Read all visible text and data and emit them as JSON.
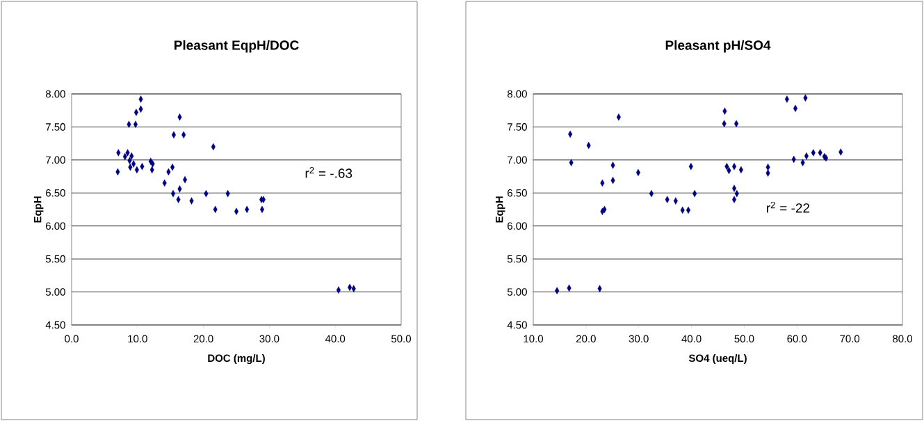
{
  "chart_data": [
    {
      "type": "scatter",
      "title": "Pleasant EqpH/DOC",
      "xlabel": "DOC (mg/L)",
      "ylabel": "EqpH",
      "color": "#000080",
      "marker": "diamond",
      "grid": "y",
      "legend": false,
      "x": [
        7.0,
        7.1,
        8.1,
        8.5,
        9.1,
        8.8,
        8.9,
        9.4,
        9.9,
        8.7,
        9.7,
        9.8,
        10.5,
        10.5,
        10.7,
        12.0,
        12.3,
        12.2,
        14.1,
        14.7,
        15.3,
        15.5,
        16.4,
        17.0,
        17.2,
        15.4,
        16.4,
        16.2,
        18.2,
        20.4,
        21.5,
        21.8,
        23.7,
        25.0,
        26.6,
        28.8,
        29.1,
        28.9,
        40.5,
        42.2,
        42.8
      ],
      "values": [
        6.82,
        7.11,
        7.05,
        7.11,
        7.06,
        6.99,
        6.89,
        6.94,
        6.85,
        7.54,
        7.54,
        7.72,
        7.77,
        7.92,
        6.9,
        6.98,
        6.94,
        6.85,
        6.65,
        6.82,
        6.89,
        7.38,
        7.65,
        7.38,
        6.7,
        6.49,
        6.56,
        6.4,
        6.38,
        6.49,
        7.2,
        6.25,
        6.49,
        6.22,
        6.25,
        6.4,
        6.4,
        6.25,
        5.03,
        5.07,
        5.05
      ],
      "xlim": [
        0,
        50
      ],
      "xticks": [
        {
          "value": 0,
          "label": "0.0"
        },
        {
          "value": 10,
          "label": "10.0"
        },
        {
          "value": 20,
          "label": "20.0"
        },
        {
          "value": 30,
          "label": "30.0"
        },
        {
          "value": 40,
          "label": "40.0"
        },
        {
          "value": 50,
          "label": "50.0"
        }
      ],
      "ylim": [
        4.5,
        8
      ],
      "yticks": [
        {
          "value": 4.5,
          "label": "4.50"
        },
        {
          "value": 5,
          "label": "5.00"
        },
        {
          "value": 5.5,
          "label": "5.50"
        },
        {
          "value": 6,
          "label": "6.00"
        },
        {
          "value": 6.5,
          "label": "6.50"
        },
        {
          "value": 7,
          "label": "7.00"
        },
        {
          "value": 7.5,
          "label": "7.50"
        },
        {
          "value": 8,
          "label": "8.00"
        }
      ],
      "annotations": [
        "r$^{2}$ = -.63"
      ]
    },
    {
      "type": "scatter",
      "title": "Pleasant pH/SO4",
      "xlabel": "SO4 (ueq/L)",
      "ylabel": "EqpH",
      "color": "#000080",
      "marker": "diamond",
      "grid": "y",
      "legend": false,
      "x": [
        14.5,
        16.8,
        22.6,
        17.0,
        17.2,
        20.5,
        26.2,
        23.1,
        25.1,
        25.1,
        23.1,
        23.5,
        29.9,
        32.4,
        35.4,
        37.0,
        38.3,
        39.4,
        39.9,
        40.6,
        46.3,
        46.2,
        48.5,
        46.7,
        47.1,
        48.1,
        49.4,
        48.1,
        48.6,
        48.1,
        54.5,
        54.5,
        58.1,
        59.7,
        61.6,
        59.4,
        61.1,
        61.8,
        63.1,
        64.4,
        65.2,
        65.5,
        68.3
      ],
      "values": [
        5.02,
        5.06,
        5.05,
        7.39,
        6.96,
        7.22,
        7.65,
        6.65,
        6.92,
        6.69,
        6.22,
        6.25,
        6.81,
        6.49,
        6.4,
        6.38,
        6.24,
        6.24,
        6.9,
        6.49,
        7.74,
        7.55,
        7.55,
        6.9,
        6.84,
        6.9,
        6.85,
        6.57,
        6.49,
        6.4,
        6.89,
        6.8,
        7.92,
        7.78,
        7.94,
        7.01,
        6.96,
        7.06,
        7.11,
        7.11,
        7.05,
        7.03,
        7.12
      ],
      "xlim": [
        10,
        80
      ],
      "xticks": [
        {
          "value": 10,
          "label": "10.0"
        },
        {
          "value": 20,
          "label": "20.0"
        },
        {
          "value": 30,
          "label": "30.0"
        },
        {
          "value": 40,
          "label": "40.0"
        },
        {
          "value": 50,
          "label": "50.0"
        },
        {
          "value": 60,
          "label": "60.0"
        },
        {
          "value": 70,
          "label": "70.0"
        },
        {
          "value": 80,
          "label": "80.0"
        }
      ],
      "ylim": [
        4.5,
        8
      ],
      "yticks": [
        {
          "value": 4.5,
          "label": "4.50"
        },
        {
          "value": 5,
          "label": "5.00"
        },
        {
          "value": 5.5,
          "label": "5.50"
        },
        {
          "value": 6,
          "label": "6.00"
        },
        {
          "value": 6.5,
          "label": "6.50"
        },
        {
          "value": 7,
          "label": "7.00"
        },
        {
          "value": 7.5,
          "label": "7.50"
        },
        {
          "value": 8,
          "label": "8.00"
        }
      ],
      "annotations": [
        "r$^{2}$ = -22"
      ]
    }
  ]
}
